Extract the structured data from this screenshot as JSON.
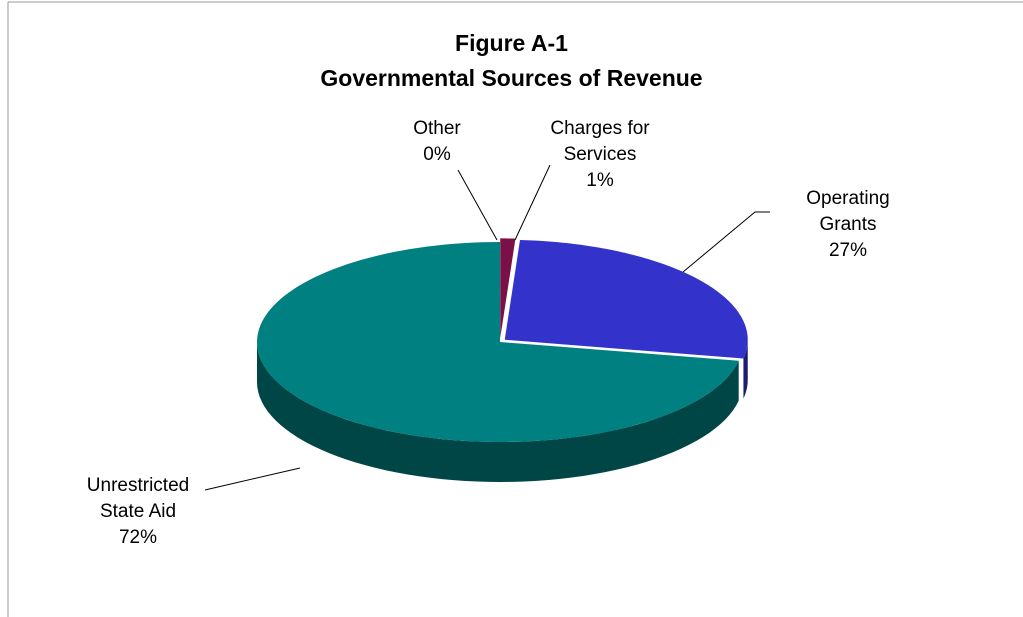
{
  "chart_data": {
    "type": "pie3d",
    "title": "Figure A-1",
    "subtitle": "Governmental Sources of Revenue",
    "categories": [
      "Other",
      "Charges for Services",
      "Operating Grants",
      "Unrestricted State Aid"
    ],
    "values": [
      0,
      1,
      27,
      72
    ],
    "value_labels": [
      "0%",
      "1%",
      "27%",
      "72%"
    ],
    "colors": [
      "#99993a",
      "#7a1048",
      "#3333cc",
      "#008080"
    ]
  }
}
